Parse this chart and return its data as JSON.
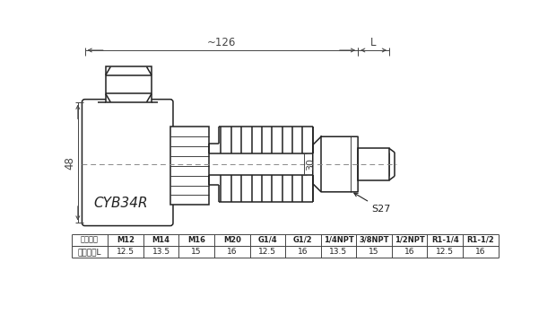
{
  "bg_color": "#ffffff",
  "line_color": "#222222",
  "dim_color": "#444444",
  "table_headers": [
    "螺纹规格",
    "M12",
    "M14",
    "M16",
    "M20",
    "G1/4",
    "G1/2",
    "1/4NPT",
    "3/8NPT",
    "1/2NPT",
    "R1-1/4",
    "R1-1/2"
  ],
  "table_row2_label": "螺纹长度L",
  "table_row2_values": [
    "12.5",
    "13.5",
    "15",
    "16",
    "12.5",
    "16",
    "13.5",
    "15",
    "16",
    "12.5",
    "16"
  ],
  "dim_126": "~126",
  "dim_L": "L",
  "dim_48": "48",
  "dim_30": "30",
  "label_s27": "S27",
  "label_cyb34r": "CYB34R"
}
